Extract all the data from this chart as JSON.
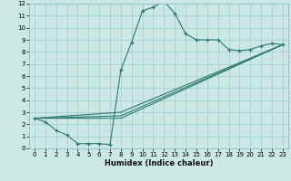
{
  "xlabel": "Humidex (Indice chaleur)",
  "bg_color": "#cce8e4",
  "grid_color": "#aacfca",
  "line_color": "#2a7a70",
  "xlim": [
    -0.5,
    23.5
  ],
  "ylim": [
    0,
    12
  ],
  "xticks": [
    0,
    1,
    2,
    3,
    4,
    5,
    6,
    7,
    8,
    9,
    10,
    11,
    12,
    13,
    14,
    15,
    16,
    17,
    18,
    19,
    20,
    21,
    22,
    23
  ],
  "yticks": [
    0,
    1,
    2,
    3,
    4,
    5,
    6,
    7,
    8,
    9,
    10,
    11,
    12
  ],
  "main_curve": {
    "x": [
      0,
      1,
      2,
      3,
      4,
      5,
      6,
      7,
      8,
      9,
      10,
      11,
      12,
      13,
      14,
      15,
      16,
      17,
      18,
      19,
      20,
      21,
      22,
      23
    ],
    "y": [
      2.5,
      2.2,
      1.5,
      1.1,
      0.4,
      0.4,
      0.4,
      0.3,
      6.5,
      8.8,
      11.4,
      11.7,
      12.2,
      11.2,
      9.5,
      9.0,
      9.0,
      9.0,
      8.2,
      8.1,
      8.2,
      8.5,
      8.7,
      8.6
    ]
  },
  "ref_lines": [
    {
      "x": [
        0,
        8,
        23
      ],
      "y": [
        2.5,
        3.0,
        8.6
      ]
    },
    {
      "x": [
        0,
        8,
        23
      ],
      "y": [
        2.5,
        2.7,
        8.6
      ]
    },
    {
      "x": [
        0,
        8,
        23
      ],
      "y": [
        2.5,
        2.5,
        8.6
      ]
    }
  ]
}
